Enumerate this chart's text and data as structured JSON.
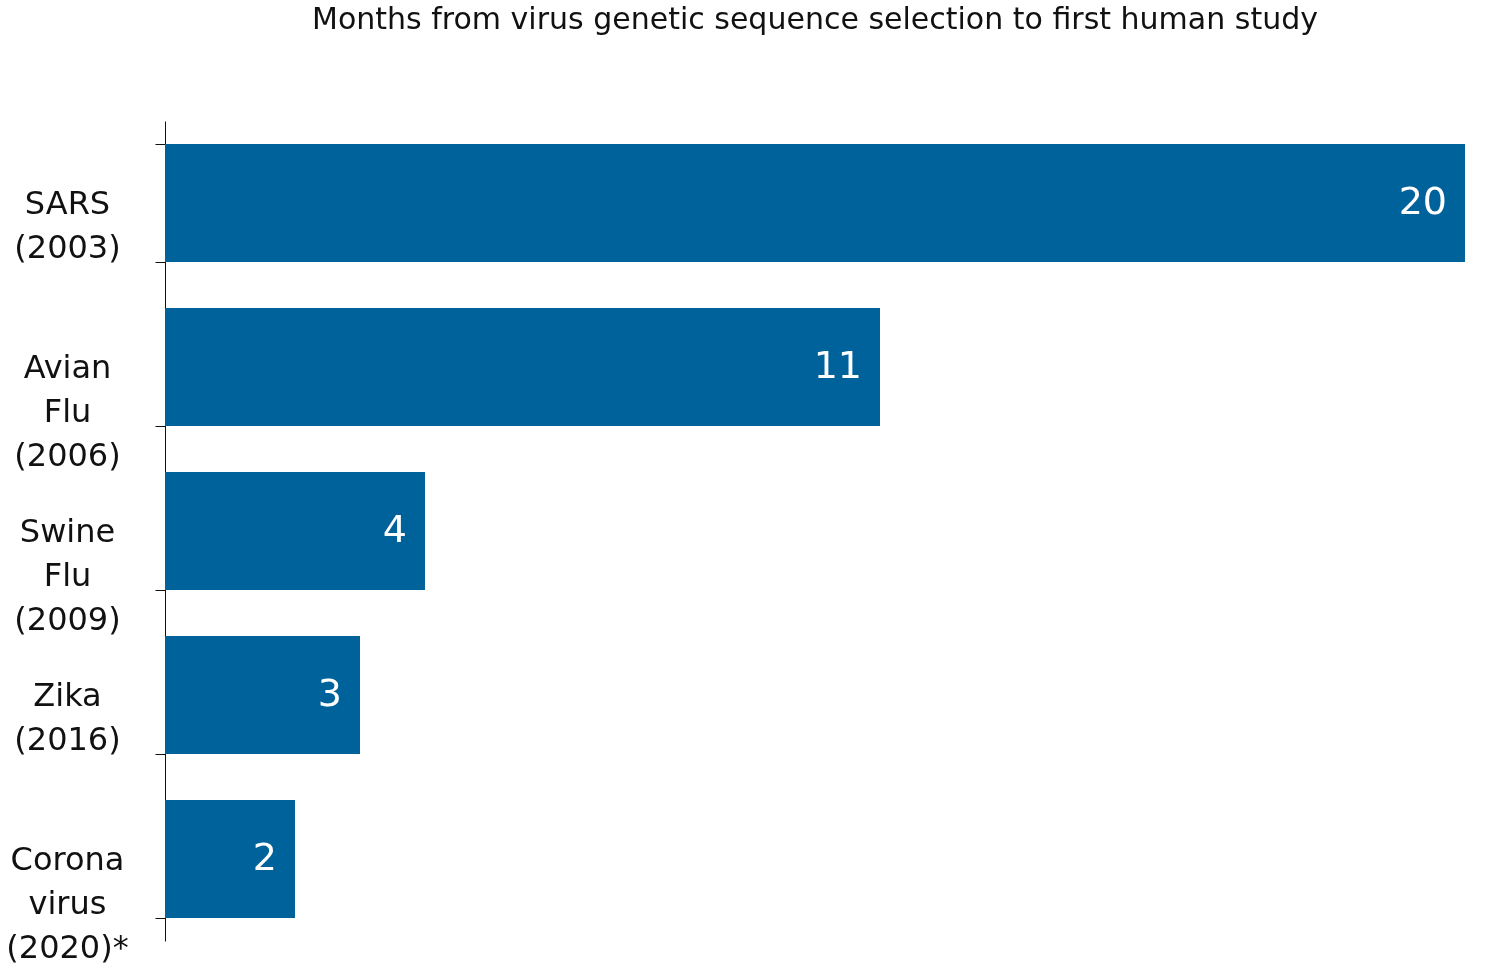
{
  "chart_data": {
    "type": "bar",
    "orientation": "horizontal",
    "title": "Months from virus genetic sequence selection to first human study",
    "categories": [
      "SARS\n(2003)",
      "Avian\nFlu\n(2006)",
      "Swine\nFlu\n(2009)",
      "Zika\n(2016)",
      "Corona\nvirus\n(2020)*"
    ],
    "values": [
      20,
      11,
      4,
      3,
      2
    ],
    "color": "#00629b",
    "data_labels": true
  }
}
